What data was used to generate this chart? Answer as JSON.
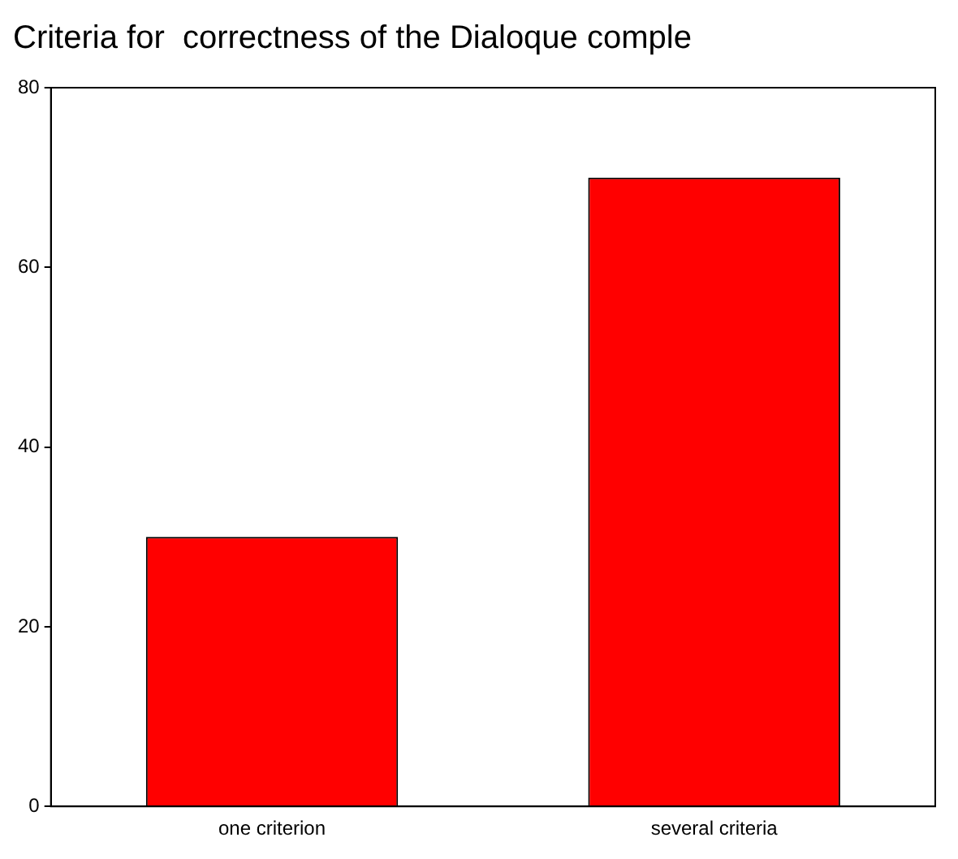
{
  "chart_data": {
    "type": "bar",
    "title": "Criteria for  correctness of the Dialoque comple",
    "categories": [
      "one criterion",
      "several criteria"
    ],
    "values": [
      30,
      70
    ],
    "color": "#ff0000",
    "ylim": [
      0,
      80
    ],
    "yticks": [
      0,
      20,
      40,
      60,
      80
    ],
    "grid": false,
    "legend": false
  }
}
